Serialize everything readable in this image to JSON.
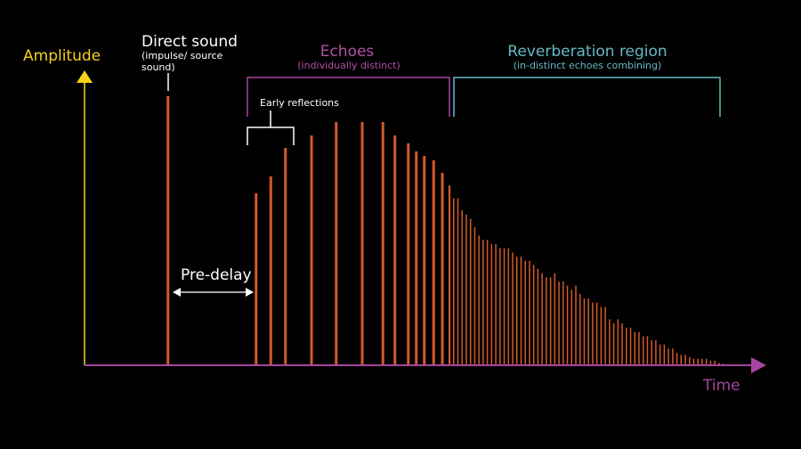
{
  "colors": {
    "bar": "#d25a2c",
    "amplitude_axis": "#f3d21a",
    "time_axis": "#a8449f",
    "echoes": "#b34fa6",
    "reverb": "#67b7c4",
    "white": "#ffffff"
  },
  "labels": {
    "amplitude": "Amplitude",
    "time": "Time",
    "direct_title": "Direct sound",
    "direct_sub1": "(impulse/ source",
    "direct_sub2": "sound)",
    "echoes_title": "Echoes",
    "echoes_sub": "(individually distinct)",
    "reverb_title": "Reverberation region",
    "reverb_sub": "(in-distinct echoes combining)",
    "early": "Early reflections",
    "predelay": "Pre-delay"
  },
  "chart_data": {
    "type": "bar",
    "title": "",
    "xlabel": "Time",
    "ylabel": "Amplitude",
    "xlim": [
      0,
      100
    ],
    "ylim": [
      0,
      100
    ],
    "grid": false,
    "direct": {
      "t": 12.5,
      "amp": 100
    },
    "echoes": {
      "t": [
        25.7,
        27.9,
        30.1,
        34.0,
        37.7,
        41.6,
        44.7,
        46.5,
        48.5,
        49.7,
        50.9,
        52.3,
        53.6
      ],
      "amp": [
        63.9,
        70.2,
        80.8,
        85.4,
        90.4,
        90.4,
        90.4,
        85.4,
        82.5,
        79.5,
        77.8,
        76.2,
        71.5
      ]
    },
    "reverb": {
      "t_start": 54.67,
      "t_step": 0.631,
      "amp": [
        66.8,
        62.1,
        62.1,
        57.6,
        56.0,
        54.4,
        51.3,
        48.2,
        46.6,
        46.6,
        45.0,
        45.0,
        43.5,
        43.5,
        43.5,
        41.9,
        40.4,
        40.4,
        38.8,
        38.8,
        37.3,
        35.8,
        34.2,
        32.7,
        32.7,
        34.2,
        31.1,
        31.1,
        29.6,
        28.0,
        29.6,
        26.5,
        24.8,
        24.8,
        23.3,
        23.3,
        21.7,
        21.7,
        17.1,
        15.6,
        17.1,
        15.6,
        14.0,
        14.0,
        12.4,
        12.4,
        10.8,
        10.8,
        9.3,
        9.3,
        7.7,
        7.7,
        6.2,
        6.2,
        4.6,
        3.9,
        3.9,
        3.0,
        2.4,
        2.4,
        2.4,
        2.4,
        1.7,
        1.7,
        0.9,
        0.6
      ]
    }
  }
}
